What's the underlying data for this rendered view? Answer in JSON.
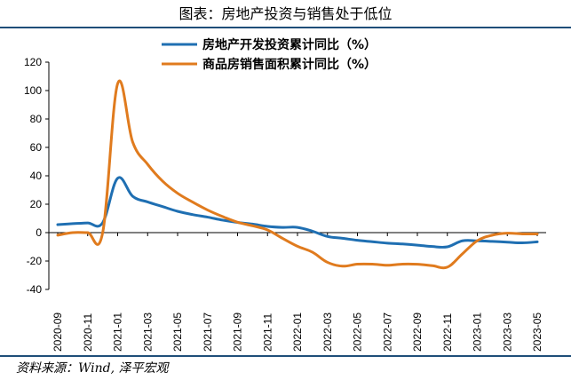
{
  "title": "图表：房地产投资与销售处于低位",
  "source": "资料来源：Wind, 泽平宏观",
  "chart_data": {
    "type": "line",
    "title": "图表：房地产投资与销售处于低位",
    "ylim": [
      -40,
      120
    ],
    "yticks": [
      -40,
      -20,
      0,
      20,
      40,
      60,
      80,
      100,
      120
    ],
    "xlabels": [
      "2020-09",
      "2020-11",
      "2021-01",
      "2021-03",
      "2021-05",
      "2021-07",
      "2021-09",
      "2021-11",
      "2022-01",
      "2022-03",
      "2022-05",
      "2022-07",
      "2022-09",
      "2022-11",
      "2023-01",
      "2023-03",
      "2023-05"
    ],
    "x": [
      "2020-09",
      "2020-10",
      "2020-11",
      "2020-12",
      "2021-01",
      "2021-02",
      "2021-03",
      "2021-04",
      "2021-05",
      "2021-06",
      "2021-07",
      "2021-08",
      "2021-09",
      "2021-10",
      "2021-11",
      "2021-12",
      "2022-01",
      "2022-02",
      "2022-03",
      "2022-04",
      "2022-05",
      "2022-06",
      "2022-07",
      "2022-08",
      "2022-09",
      "2022-10",
      "2022-11",
      "2022-12",
      "2023-01",
      "2023-02",
      "2023-03",
      "2023-04",
      "2023-05"
    ],
    "legend_position": "top-center",
    "grid": false,
    "series": [
      {
        "name": "房地产开发投资累计同比（%）",
        "color": "#1f6fb2",
        "values": [
          5.6,
          6.3,
          6.8,
          7.0,
          38.3,
          25.6,
          21.6,
          18.3,
          15.0,
          12.7,
          10.9,
          8.8,
          7.2,
          6.0,
          4.4,
          3.7,
          3.7,
          1.0,
          -2.7,
          -4.0,
          -5.4,
          -6.4,
          -7.4,
          -8.0,
          -8.8,
          -9.8,
          -10.0,
          -5.8,
          -5.8,
          -6.2,
          -6.7,
          -7.2,
          -6.5
        ]
      },
      {
        "name": "商品房销售面积累计同比（%）",
        "color": "#e07b1e",
        "values": [
          -1.8,
          0.0,
          0.0,
          0.0,
          104.9,
          63.8,
          48.1,
          36.2,
          27.7,
          21.5,
          15.9,
          11.3,
          7.3,
          4.8,
          1.9,
          -4.0,
          -9.6,
          -13.8,
          -20.9,
          -23.6,
          -22.2,
          -22.2,
          -23.0,
          -22.2,
          -22.3,
          -23.3,
          -24.3,
          -15.0,
          -5.7,
          -1.8,
          -0.4,
          -0.9,
          -0.9
        ]
      }
    ]
  }
}
